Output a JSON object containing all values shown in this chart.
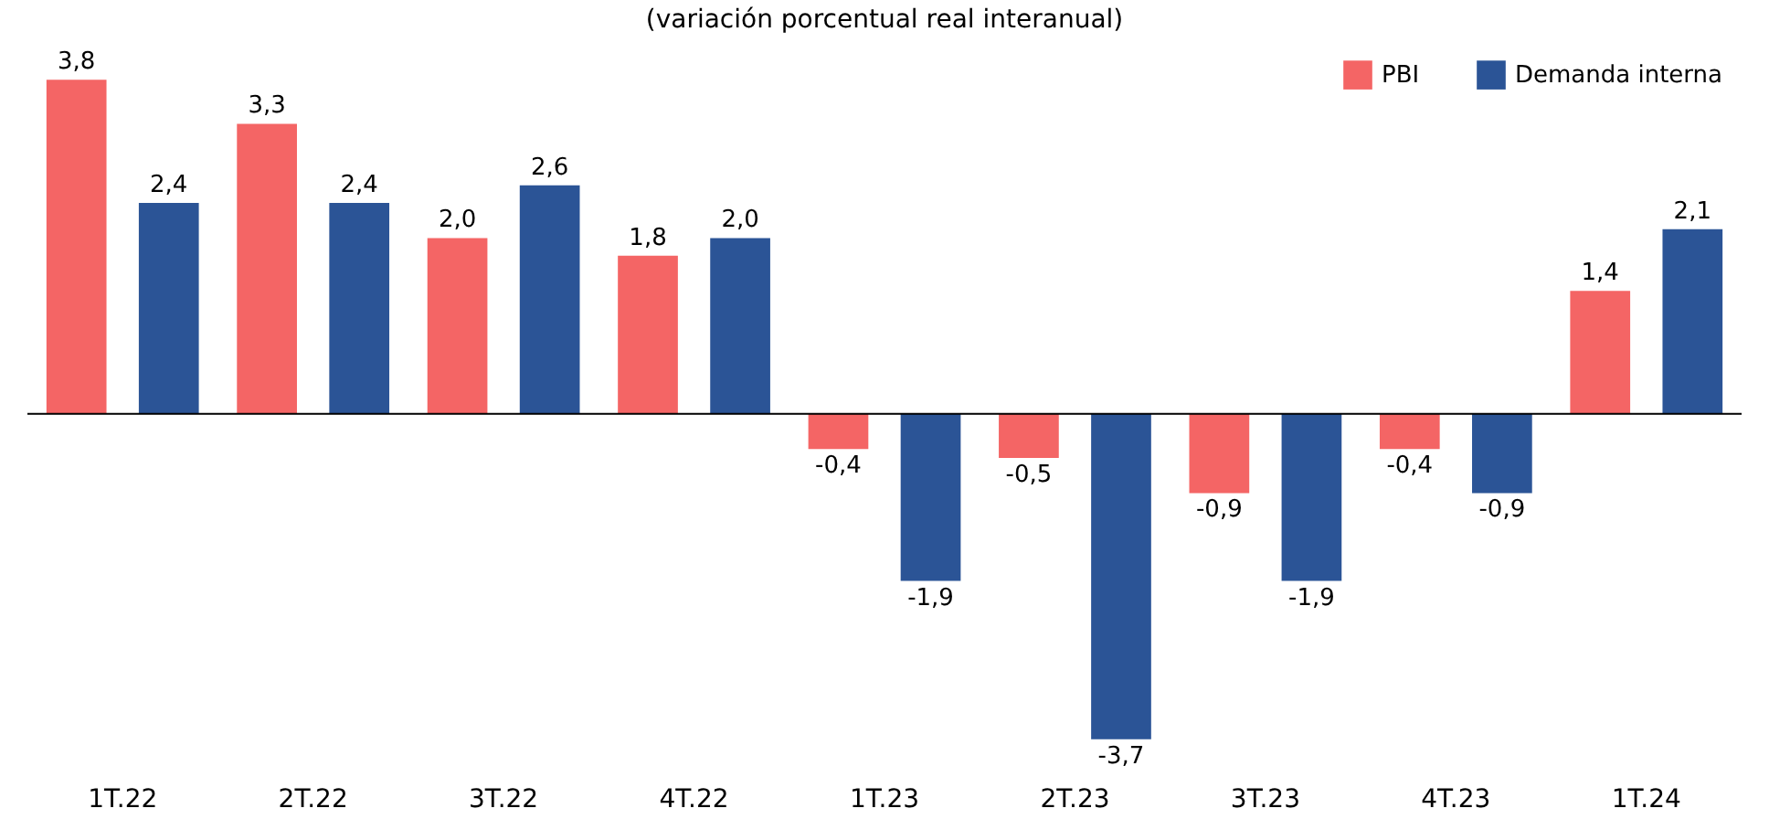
{
  "chart_data": {
    "type": "bar",
    "subtitle": "(variación porcentual real interanual)",
    "categories": [
      "1T.22",
      "2T.22",
      "3T.22",
      "4T.22",
      "1T.23",
      "2T.23",
      "3T.23",
      "4T.23",
      "1T.24"
    ],
    "series": [
      {
        "name": "PBI",
        "color": "#f46565",
        "values": [
          3.8,
          3.3,
          2.0,
          1.8,
          -0.4,
          -0.5,
          -0.9,
          -0.4,
          1.4
        ],
        "value_labels": [
          "3,8",
          "3,3",
          "2,0",
          "1,8",
          "-0,4",
          "-0,5",
          "-0,9",
          "-0,4",
          "1,4"
        ]
      },
      {
        "name": "Demanda interna",
        "color": "#2b5496",
        "values": [
          2.4,
          2.4,
          2.6,
          2.0,
          -1.9,
          -3.7,
          -1.9,
          -0.9,
          2.1
        ],
        "value_labels": [
          "2,4",
          "2,4",
          "2,6",
          "2,0",
          "-1,9",
          "-3,7",
          "-1,9",
          "-0,9",
          "2,1"
        ]
      }
    ],
    "legend": "top right"
  }
}
